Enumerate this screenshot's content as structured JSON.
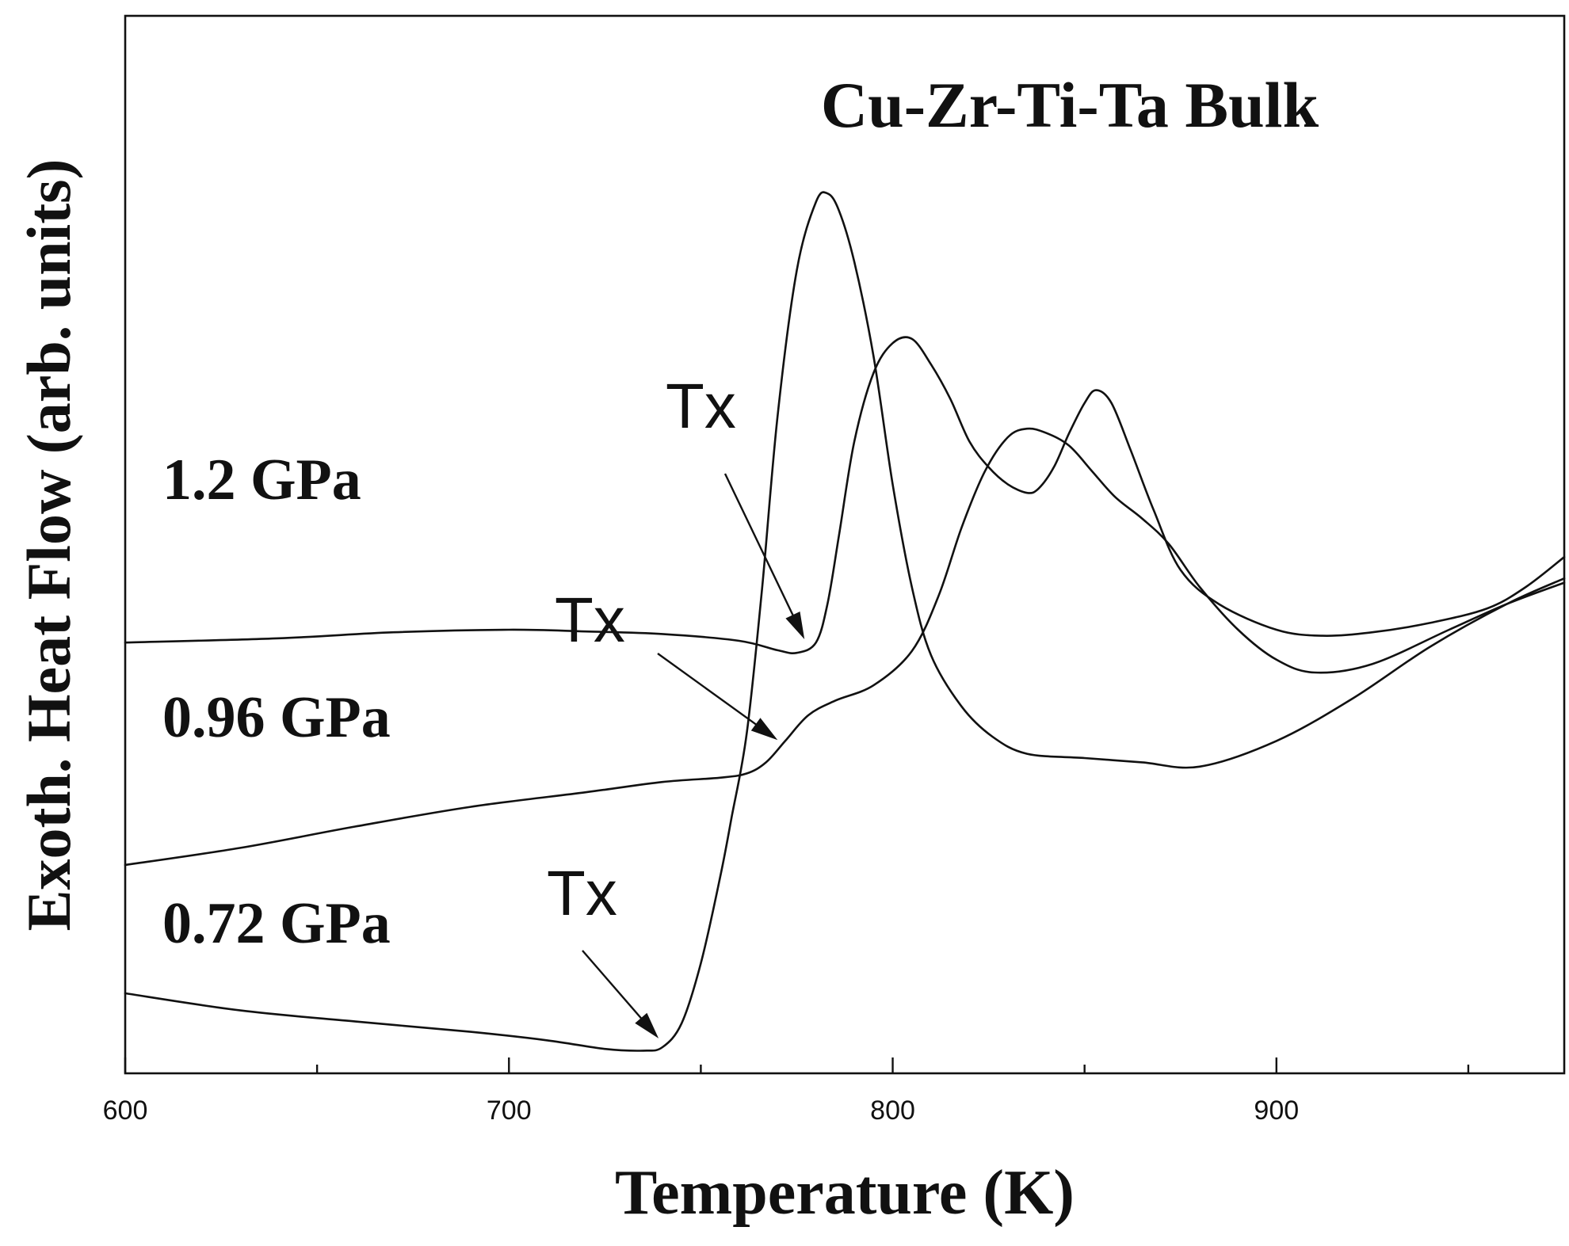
{
  "chart_data": {
    "type": "line",
    "title": "Cu-Zr-Ti-Ta  Bulk",
    "xlabel": "Temperature (K)",
    "ylabel": "Exoth. Heat Flow (arb. units)",
    "xlim": [
      600,
      975
    ],
    "ylim": [
      0,
      100
    ],
    "x_ticks": [
      600,
      700,
      800,
      900
    ],
    "x_tick_labels": [
      "600",
      "700",
      "800",
      "900"
    ],
    "x_minor_ticks": [
      650,
      750,
      850,
      950
    ],
    "y_ticks_shown": false,
    "series": [
      {
        "name": "1.2 GPa",
        "label": "1.2 GPa",
        "x": [
          600,
          640,
          670,
          700,
          720,
          740,
          760,
          770,
          775,
          780,
          783,
          786,
          790,
          795,
          800,
          805,
          810,
          815,
          820,
          825,
          830,
          835,
          838,
          842,
          846,
          850,
          853,
          857,
          862,
          868,
          875,
          885,
          900,
          912,
          925,
          940,
          955,
          965,
          975
        ],
        "y": [
          48.5,
          49.0,
          49.7,
          50.0,
          49.8,
          49.5,
          48.7,
          47.6,
          47.3,
          48.5,
          53,
          61,
          72,
          80,
          83.5,
          84,
          81,
          77,
          72,
          69,
          67,
          66,
          66.5,
          69,
          73,
          76.5,
          78,
          76.5,
          71,
          64,
          57,
          53,
          50,
          49.3,
          49.7,
          50.8,
          52.5,
          55,
          58.5
        ]
      },
      {
        "name": "0.96 GPa",
        "label": "0.96 GPa",
        "x": [
          600,
          630,
          660,
          690,
          720,
          740,
          755,
          762,
          767,
          772,
          778,
          785,
          795,
          805,
          812,
          818,
          824,
          830,
          835,
          840,
          846,
          852,
          858,
          865,
          872,
          880,
          890,
          900,
          910,
          925,
          945,
          960,
          975
        ],
        "y": [
          22.5,
          24.5,
          27.0,
          29.3,
          31.0,
          32.2,
          32.7,
          33.2,
          34.5,
          37.0,
          40.0,
          41.7,
          43.5,
          47.5,
          54.0,
          62.0,
          68.5,
          72.5,
          73.5,
          73.0,
          71.5,
          68.5,
          65.5,
          63.0,
          60.0,
          55.0,
          50.0,
          46.5,
          45.0,
          46.0,
          50.0,
          53.0,
          55.5
        ]
      },
      {
        "name": "0.72 GPa",
        "label": "0.72 GPa",
        "x": [
          600,
          630,
          660,
          690,
          710,
          725,
          735,
          740,
          745,
          750,
          755,
          758,
          762,
          766,
          770,
          775,
          780,
          783,
          786,
          790,
          795,
          800,
          805,
          810,
          818,
          826,
          835,
          850,
          865,
          880,
          900,
          920,
          940,
          960,
          975
        ],
        "y": [
          7.5,
          5.5,
          4.2,
          3.0,
          2.0,
          1.0,
          0.8,
          1.2,
          4.0,
          11.0,
          21.0,
          28.0,
          38.0,
          55.0,
          75.0,
          92.0,
          100.0,
          101.0,
          99.0,
          93.0,
          82.0,
          67.0,
          55.0,
          47.0,
          41.0,
          37.5,
          35.5,
          35.0,
          34.5,
          34.0,
          37.0,
          42.0,
          48.0,
          53.0,
          56.0
        ]
      }
    ],
    "annotations": [
      {
        "text": "Tx",
        "series": "1.2 GPa",
        "points_to_x": 777
      },
      {
        "text": "Tx",
        "series": "0.96 GPa",
        "points_to_x": 770
      },
      {
        "text": "Tx",
        "series": "0.72 GPa",
        "points_to_x": 739
      }
    ]
  }
}
